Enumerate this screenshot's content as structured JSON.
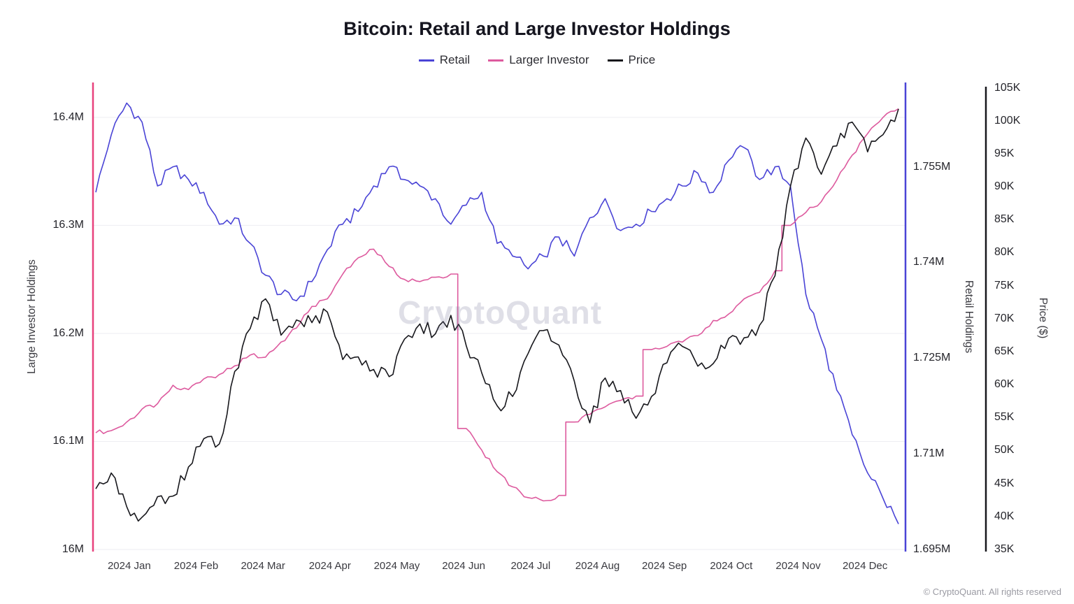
{
  "title": "Bitcoin: Retail and Large Investor Holdings",
  "watermark": "CryptoQuant",
  "footer": "© CryptoQuant. All rights reserved",
  "legend": [
    {
      "label": "Retail",
      "color": "#4a44d6"
    },
    {
      "label": "Larger Investor",
      "color": "#dd5a9e"
    },
    {
      "label": "Price",
      "color": "#17171c"
    }
  ],
  "chart_data": {
    "type": "line",
    "title": "Bitcoin: Retail and Large Investor Holdings",
    "x_tick_labels": [
      "2024 Jan",
      "2024 Feb",
      "2024 Mar",
      "2024 Apr",
      "2024 May",
      "2024 Jun",
      "2024 Jul",
      "2024 Aug",
      "2024 Sep",
      "2024 Oct",
      "2024 Nov",
      "2024 Dec"
    ],
    "grid": "horizontal-light",
    "legend_position": "top-center",
    "axes": {
      "large": {
        "label": "Large Investor Holdings",
        "side": "left",
        "range": [
          16.0,
          16.431
        ],
        "spine_color": "#e8417c",
        "ticks": [
          {
            "v": 16.0,
            "t": "16M"
          },
          {
            "v": 16.1,
            "t": "16.1M"
          },
          {
            "v": 16.2,
            "t": "16.2M"
          },
          {
            "v": 16.3,
            "t": "16.3M"
          },
          {
            "v": 16.4,
            "t": "16.4M"
          }
        ]
      },
      "retail": {
        "label": "Retail Holdings",
        "side": "right",
        "range": [
          1.695,
          1.768
        ],
        "spine_color": "#4a44d6",
        "ticks": [
          {
            "v": 1.695,
            "t": "1.695M"
          },
          {
            "v": 1.71,
            "t": "1.71M"
          },
          {
            "v": 1.725,
            "t": "1.725M"
          },
          {
            "v": 1.74,
            "t": "1.74M"
          },
          {
            "v": 1.755,
            "t": "1.755M"
          }
        ]
      },
      "price": {
        "label": "Price ($)",
        "side": "far-right",
        "range": [
          35,
          105.6
        ],
        "spine_color": "#17171c",
        "ticks": [
          {
            "v": 35,
            "t": "35K"
          },
          {
            "v": 40,
            "t": "40K"
          },
          {
            "v": 45,
            "t": "45K"
          },
          {
            "v": 50,
            "t": "50K"
          },
          {
            "v": 55,
            "t": "55K"
          },
          {
            "v": 60,
            "t": "60K"
          },
          {
            "v": 65,
            "t": "65K"
          },
          {
            "v": 70,
            "t": "70K"
          },
          {
            "v": 75,
            "t": "75K"
          },
          {
            "v": 80,
            "t": "80K"
          },
          {
            "v": 85,
            "t": "85K"
          },
          {
            "v": 90,
            "t": "90K"
          },
          {
            "v": 95,
            "t": "95K"
          },
          {
            "v": 100,
            "t": "100K"
          },
          {
            "v": 105,
            "t": "105K"
          }
        ]
      }
    },
    "series": [
      {
        "name": "Retail",
        "axis": "retail",
        "color": "#4a44d6",
        "unit": "M BTC",
        "values": [
          1.751,
          1.76,
          1.765,
          1.762,
          1.752,
          1.755,
          1.753,
          1.751,
          1.746,
          1.747,
          1.743,
          1.738,
          1.735,
          1.734,
          1.737,
          1.742,
          1.746,
          1.748,
          1.752,
          1.755,
          1.753,
          1.752,
          1.75,
          1.746,
          1.749,
          1.751,
          1.743,
          1.741,
          1.739,
          1.741,
          1.744,
          1.741,
          1.747,
          1.75,
          1.745,
          1.746,
          1.748,
          1.75,
          1.752,
          1.754,
          1.751,
          1.756,
          1.758,
          1.753,
          1.755,
          1.752,
          1.735,
          1.728,
          1.72,
          1.713,
          1.707,
          1.703,
          1.699
        ]
      },
      {
        "name": "Larger Investor",
        "axis": "large",
        "color": "#dd5a9e",
        "unit": "M BTC",
        "values": [
          16.108,
          16.11,
          16.118,
          16.13,
          16.135,
          16.152,
          16.148,
          16.158,
          16.162,
          16.17,
          16.18,
          16.178,
          16.192,
          16.205,
          16.225,
          16.232,
          16.255,
          16.27,
          16.278,
          16.262,
          16.25,
          16.248,
          16.252,
          16.255,
          16.112,
          16.092,
          16.072,
          16.058,
          16.048,
          16.045,
          16.05,
          16.118,
          16.125,
          16.132,
          16.138,
          16.142,
          16.185,
          16.188,
          16.192,
          16.198,
          16.212,
          16.218,
          16.232,
          16.238,
          16.258,
          16.3,
          16.312,
          16.322,
          16.342,
          16.365,
          16.385,
          16.4,
          16.408
        ]
      },
      {
        "name": "Price",
        "axis": "price",
        "color": "#17171c",
        "unit": "K USD",
        "values": [
          44.2,
          46.6,
          41.5,
          39.9,
          43.0,
          43.1,
          47.5,
          51.8,
          51.0,
          62.0,
          68.5,
          73.0,
          67.5,
          69.8,
          69.4,
          71.0,
          63.8,
          64.2,
          62.3,
          61.2,
          66.9,
          69.2,
          67.7,
          70.5,
          65.9,
          61.8,
          56.8,
          58.2,
          64.7,
          68.2,
          66.0,
          60.5,
          54.2,
          61.0,
          59.1,
          54.9,
          58.2,
          63.3,
          65.8,
          62.8,
          63.2,
          67.0,
          67.1,
          69.0,
          76.5,
          90.1,
          97.4,
          91.9,
          96.2,
          99.8,
          95.3,
          97.9,
          101.8
        ]
      }
    ]
  }
}
